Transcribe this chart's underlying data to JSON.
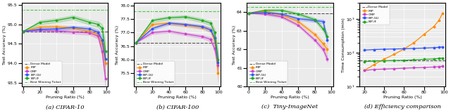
{
  "pruning_ratios": [
    0,
    20,
    40,
    60,
    80,
    90,
    95,
    99
  ],
  "cifar10": {
    "ylim": [
      93.4,
      95.55
    ],
    "yticks": [
      93.5,
      94.0,
      94.5,
      95.0,
      95.5
    ],
    "dense": 94.82,
    "best_ticket": 95.38,
    "IMP": [
      94.82,
      94.93,
      94.94,
      94.9,
      94.82,
      94.75,
      94.5,
      94.0
    ],
    "OMP": [
      94.82,
      94.85,
      94.83,
      94.8,
      94.78,
      94.7,
      94.3,
      93.6
    ],
    "BiP_GU": [
      94.82,
      94.87,
      94.88,
      94.92,
      94.88,
      94.8,
      94.6,
      94.1
    ],
    "BiP_IF": [
      94.82,
      95.05,
      95.1,
      95.18,
      95.05,
      95.0,
      94.9,
      94.3
    ],
    "IMP_std": [
      0,
      0.05,
      0.05,
      0.05,
      0.06,
      0.08,
      0.12,
      0.25
    ],
    "OMP_std": [
      0,
      0.04,
      0.04,
      0.04,
      0.05,
      0.07,
      0.1,
      0.2
    ],
    "BiP_GU_std": [
      0,
      0.04,
      0.04,
      0.04,
      0.05,
      0.06,
      0.1,
      0.18
    ],
    "BiP_IF_std": [
      0,
      0.05,
      0.05,
      0.05,
      0.06,
      0.07,
      0.1,
      0.2
    ]
  },
  "cifar100": {
    "ylim": [
      75.0,
      78.1
    ],
    "yticks": [
      75.5,
      76.0,
      76.5,
      77.0,
      77.5,
      78.0
    ],
    "dense": 76.62,
    "best_ticket": 77.78,
    "IMP": [
      76.62,
      77.3,
      77.35,
      77.28,
      77.2,
      77.1,
      76.7,
      75.5
    ],
    "OMP": [
      76.62,
      77.0,
      77.05,
      76.95,
      76.85,
      76.75,
      76.4,
      75.8
    ],
    "BiP_GU": [
      76.62,
      77.15,
      77.35,
      77.3,
      77.22,
      77.1,
      76.8,
      75.9
    ],
    "BiP_IF": [
      76.62,
      77.45,
      77.55,
      77.58,
      77.45,
      77.35,
      77.0,
      76.0
    ],
    "IMP_std": [
      0,
      0.06,
      0.06,
      0.06,
      0.07,
      0.09,
      0.14,
      0.3
    ],
    "OMP_std": [
      0,
      0.05,
      0.05,
      0.05,
      0.06,
      0.08,
      0.12,
      0.25
    ],
    "BiP_GU_std": [
      0,
      0.05,
      0.05,
      0.05,
      0.06,
      0.07,
      0.12,
      0.22
    ],
    "BiP_IF_std": [
      0,
      0.06,
      0.06,
      0.06,
      0.07,
      0.08,
      0.12,
      0.24
    ]
  },
  "tiny": {
    "ylim": [
      60.0,
      64.5
    ],
    "yticks": [
      60,
      61,
      62,
      63,
      64
    ],
    "dense": 63.95,
    "best_ticket": 64.28,
    "IMP": [
      63.95,
      64.05,
      63.85,
      63.5,
      62.8,
      62.3,
      62.0,
      null
    ],
    "OMP": [
      63.95,
      63.9,
      63.75,
      63.3,
      62.5,
      62.0,
      61.5,
      null
    ],
    "BiP_GU": [
      63.95,
      63.98,
      63.9,
      63.65,
      63.55,
      63.5,
      62.5,
      null
    ],
    "BiP_IF": [
      63.95,
      64.1,
      64.1,
      63.9,
      63.6,
      63.1,
      62.7,
      null
    ],
    "IMP_std": [
      0,
      0.06,
      0.07,
      0.08,
      0.1,
      0.14,
      0.2,
      0
    ],
    "OMP_std": [
      0,
      0.05,
      0.06,
      0.07,
      0.09,
      0.12,
      0.18,
      0
    ],
    "BiP_GU_std": [
      0,
      0.05,
      0.06,
      0.07,
      0.08,
      0.1,
      0.16,
      0
    ],
    "BiP_IF_std": [
      0,
      0.06,
      0.07,
      0.08,
      0.09,
      0.12,
      0.18,
      0
    ]
  },
  "efficiency": {
    "pruning_ratios": [
      20,
      30,
      40,
      50,
      60,
      70,
      80,
      90,
      95,
      99
    ],
    "dense_time": 60,
    "IMP": [
      30,
      45,
      65,
      90,
      130,
      200,
      350,
      600,
      900,
      1500
    ],
    "OMP": [
      30,
      32,
      33,
      34,
      35,
      36,
      37,
      38,
      39,
      40
    ],
    "BiP_GU": [
      120,
      125,
      128,
      130,
      132,
      135,
      138,
      142,
      145,
      150
    ],
    "BiP_IF": [
      55,
      57,
      58,
      59,
      60,
      62,
      64,
      66,
      68,
      70
    ]
  },
  "colors": {
    "dense": "#555555",
    "IMP": "#ff8c00",
    "OMP": "#cc44cc",
    "BiP_GU": "#3355ff",
    "BiP_IF": "#22aa22",
    "best_ticket": "#44cc44"
  },
  "captions": [
    "(a) CIFAR-10",
    "(b) CIFAR-100",
    "(c)  Tiny-ImageNet",
    "(d) Efficiency comparison"
  ]
}
